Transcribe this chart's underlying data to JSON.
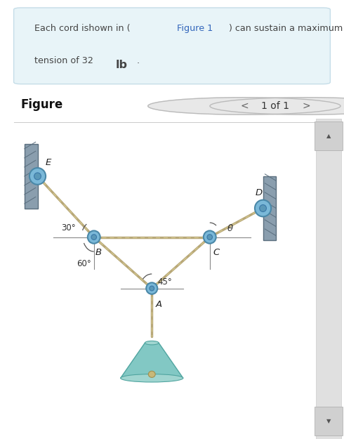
{
  "bg_color": "#ffffff",
  "text_box_color": "#e8f4f8",
  "text_box_border": "#c5dde8",
  "figure_label": "Figure",
  "nav_text": "1 of 1",
  "cord_color": "#b8a878",
  "angle_30": "30°",
  "angle_60": "60°",
  "angle_45": "45°",
  "angle_theta": "θ",
  "label_E": "E",
  "label_D": "D",
  "label_B": "B",
  "label_C": "C",
  "label_A": "A"
}
